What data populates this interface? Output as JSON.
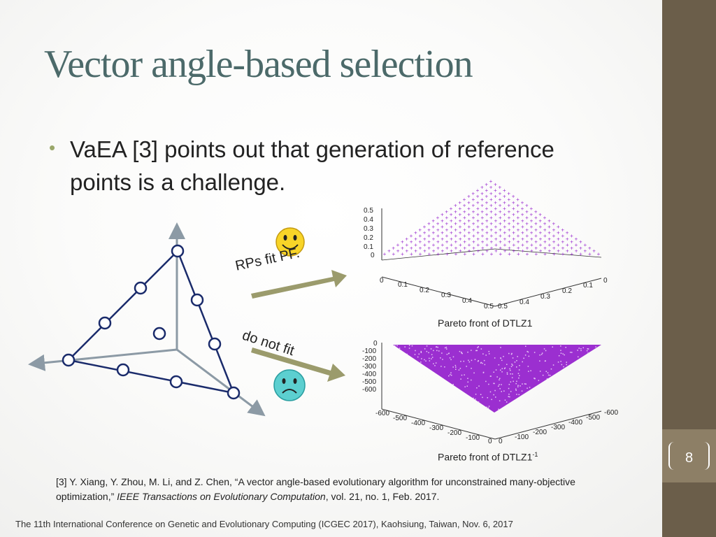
{
  "slide": {
    "title": "Vector angle-based selection",
    "bullet_line1": "VaEA [3] points out that generation of reference",
    "bullet_line2": "points is a challenge.",
    "page_number": "8"
  },
  "diagram": {
    "label_fit": "RPs fit PF.",
    "label_not_fit": "do not fit",
    "happy_face": "smiley-face",
    "sad_face": "frowning-face"
  },
  "plots": {
    "caption_top": "Pareto front of DTLZ1",
    "caption_bottom_main": "Pareto front of DTLZ1",
    "caption_bottom_sup": "-1",
    "top_z_ticks": [
      "0.5",
      "0.4",
      "0.3",
      "0.2",
      "0.1",
      "0"
    ],
    "top_left_ticks": [
      "0",
      "0.1",
      "0.2",
      "0.3",
      "0.4",
      "0.5"
    ],
    "top_right_ticks": [
      "0.5",
      "0.4",
      "0.3",
      "0.2",
      "0.1",
      "0"
    ],
    "bottom_z_ticks": [
      "0",
      "-100",
      "-200",
      "-300",
      "-400",
      "-500",
      "-600"
    ],
    "bottom_left_ticks": [
      "-600",
      "-500",
      "-400",
      "-300",
      "-200",
      "-100",
      "0"
    ],
    "bottom_right_ticks": [
      "0",
      "-100",
      "-200",
      "-300",
      "-400",
      "-500",
      "-600"
    ]
  },
  "reference": {
    "line1": "[3] Y. Xiang, Y. Zhou, M. Li, and Z. Chen, “A vector angle-based evolutionary algorithm for unconstrained many-objective",
    "line2_start": "optimization,” ",
    "journal": "IEEE Transactions on Evolutionary Computation",
    "line2_end": ", vol. 21, no. 1, Feb. 2017."
  },
  "footer": "The 11th International Conference on Genetic and Evolutionary Computing (ICGEC 2017), Kaohsiung, Taiwan, Nov. 6, 2017",
  "colors": {
    "title": "#4c6a6a",
    "bar": "#6b5e4a",
    "badge": "#8d7f66",
    "arrow": "#9b9b6c",
    "triangle": "#1a2b6b",
    "purple": "#9b2fd0"
  }
}
